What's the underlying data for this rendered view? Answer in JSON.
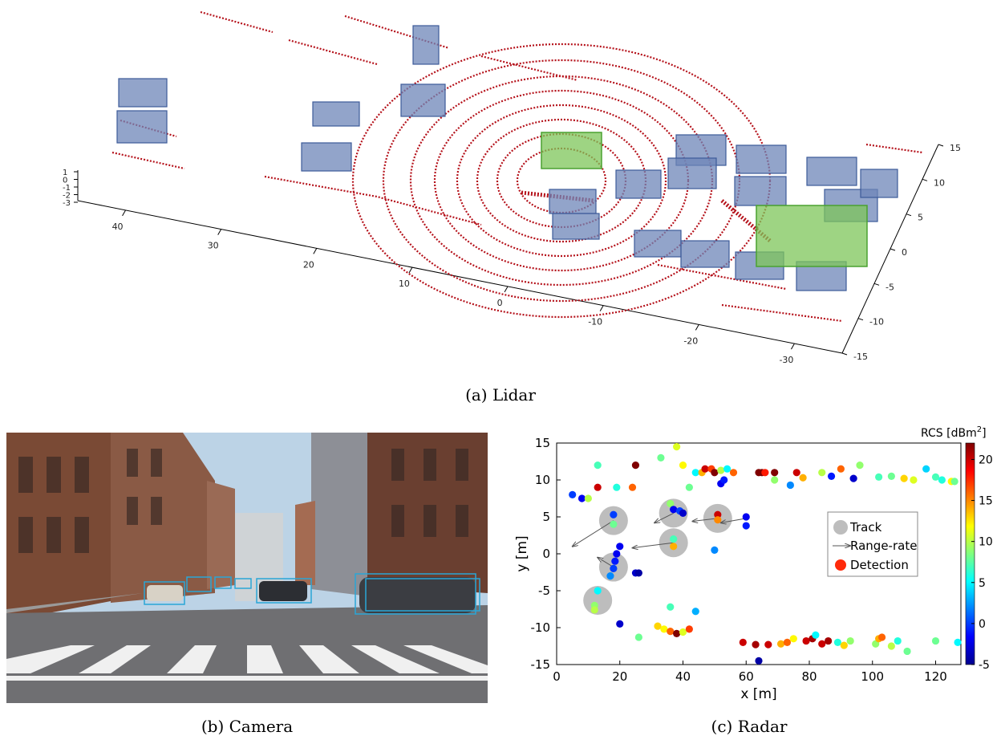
{
  "captions": {
    "lidar": "(a)  Lidar",
    "camera": "(b)  Camera",
    "radar": "(c)  Radar"
  },
  "lidar": {
    "x_ticks": [
      "40",
      "30",
      "20",
      "10",
      "0",
      "-10",
      "-20",
      "-30"
    ],
    "y_ticks": [
      "15",
      "10",
      "5",
      "0",
      "-5",
      "-10",
      "-15"
    ],
    "z_ticks": [
      "1",
      "0",
      "-1",
      "-2",
      "-3"
    ],
    "colors": {
      "points": "#b5121b",
      "box_blue": "#6e86b8",
      "box_green": "#7dc65a"
    }
  },
  "camera": {
    "colors": {
      "sky": "#bcd3e6",
      "road": "#6f6f72",
      "box": "#2aa6d6"
    }
  },
  "radar": {
    "colorbar_label": "RCS [dBm",
    "colorbar_label_sup": "2",
    "colorbar_label_end": "]",
    "colorbar_ticks": [
      "20",
      "15",
      "10",
      "5",
      "0",
      "-5"
    ],
    "legend": {
      "track": "Track",
      "range_rate": "Range-rate",
      "detection": "Detection"
    },
    "chart_data": {
      "type": "scatter",
      "xlabel": "x [m]",
      "ylabel": "y [m]",
      "xlim": [
        0,
        128
      ],
      "ylim": [
        -15,
        15
      ],
      "x_ticks": [
        "0",
        "20",
        "40",
        "60",
        "80",
        "100",
        "120"
      ],
      "y_ticks": [
        "15",
        "10",
        "5",
        "0",
        "-5",
        "-10",
        "-15"
      ],
      "tracks": [
        {
          "x": 18,
          "y": 4.5
        },
        {
          "x": 37,
          "y": 5.5
        },
        {
          "x": 51,
          "y": 4.8
        },
        {
          "x": 37,
          "y": 1.5
        },
        {
          "x": 18,
          "y": -1.8
        },
        {
          "x": 13,
          "y": -6.3
        }
      ],
      "range_rate": [
        {
          "x1": 18,
          "y1": 4.5,
          "x2": 5,
          "y2": 1
        },
        {
          "x1": 37,
          "y1": 5.5,
          "x2": 31,
          "y2": 4.2
        },
        {
          "x1": 51,
          "y1": 4.8,
          "x2": 43,
          "y2": 4.4
        },
        {
          "x1": 37,
          "y1": 1.5,
          "x2": 24,
          "y2": 0.8
        },
        {
          "x1": 18,
          "y1": -1.8,
          "x2": 13,
          "y2": -0.5
        },
        {
          "x1": 60,
          "y1": 4.8,
          "x2": 52,
          "y2": 4.2
        }
      ],
      "detections": [
        {
          "x": 5,
          "y": 8,
          "r": 0
        },
        {
          "x": 8,
          "y": 7.5,
          "r": -2
        },
        {
          "x": 10,
          "y": 7.5,
          "r": 10
        },
        {
          "x": 13,
          "y": 12,
          "r": 7
        },
        {
          "x": 13,
          "y": 9,
          "r": 20
        },
        {
          "x": 19,
          "y": 9,
          "r": 6
        },
        {
          "x": 24,
          "y": 9,
          "r": 16
        },
        {
          "x": 25,
          "y": 12,
          "r": 22
        },
        {
          "x": 33,
          "y": 13,
          "r": 8
        },
        {
          "x": 38,
          "y": 14.5,
          "r": 11
        },
        {
          "x": 40,
          "y": 12,
          "r": 12
        },
        {
          "x": 42,
          "y": 9,
          "r": 8
        },
        {
          "x": 44,
          "y": 11,
          "r": 5
        },
        {
          "x": 46,
          "y": 11,
          "r": 14
        },
        {
          "x": 47,
          "y": 11.5,
          "r": 20
        },
        {
          "x": 49,
          "y": 11.5,
          "r": 17
        },
        {
          "x": 50,
          "y": 11,
          "r": 22
        },
        {
          "x": 52,
          "y": 11.3,
          "r": 10
        },
        {
          "x": 54,
          "y": 11.5,
          "r": 5
        },
        {
          "x": 56,
          "y": 11,
          "r": 16
        },
        {
          "x": 52,
          "y": 9.5,
          "r": -2
        },
        {
          "x": 53,
          "y": 10,
          "r": -1
        },
        {
          "x": 64,
          "y": 11,
          "r": 22
        },
        {
          "x": 65,
          "y": 11,
          "r": 23
        },
        {
          "x": 66,
          "y": 11,
          "r": 18
        },
        {
          "x": 69,
          "y": 11,
          "r": 23
        },
        {
          "x": 69,
          "y": 10,
          "r": 9
        },
        {
          "x": 74,
          "y": 9.3,
          "r": 2
        },
        {
          "x": 76,
          "y": 11,
          "r": 20
        },
        {
          "x": 78,
          "y": 10.3,
          "r": 14
        },
        {
          "x": 84,
          "y": 11,
          "r": 10
        },
        {
          "x": 87,
          "y": 10.5,
          "r": -1
        },
        {
          "x": 90,
          "y": 11.5,
          "r": 16
        },
        {
          "x": 94,
          "y": 10.2,
          "r": -3
        },
        {
          "x": 96,
          "y": 12,
          "r": 9
        },
        {
          "x": 102,
          "y": 10.4,
          "r": 7
        },
        {
          "x": 106,
          "y": 10.5,
          "r": 8
        },
        {
          "x": 110,
          "y": 10.2,
          "r": 13
        },
        {
          "x": 113,
          "y": 10,
          "r": 11
        },
        {
          "x": 117,
          "y": 11.5,
          "r": 4
        },
        {
          "x": 120,
          "y": 10.4,
          "r": 7
        },
        {
          "x": 122,
          "y": 10,
          "r": 6
        },
        {
          "x": 125,
          "y": 9.8,
          "r": 12
        },
        {
          "x": 126,
          "y": 9.8,
          "r": 8
        },
        {
          "x": 18,
          "y": 5.3,
          "r": 0
        },
        {
          "x": 18,
          "y": 4,
          "r": 8
        },
        {
          "x": 36,
          "y": 6.8,
          "r": 9
        },
        {
          "x": 37,
          "y": 6,
          "r": -2
        },
        {
          "x": 39,
          "y": 5.8,
          "r": 0
        },
        {
          "x": 40,
          "y": 5.5,
          "r": -3
        },
        {
          "x": 51,
          "y": 5.3,
          "r": 20
        },
        {
          "x": 51,
          "y": 4.6,
          "r": 15
        },
        {
          "x": 60,
          "y": 5,
          "r": -2
        },
        {
          "x": 60,
          "y": 3.8,
          "r": -1
        },
        {
          "x": 37,
          "y": 2,
          "r": 7
        },
        {
          "x": 37,
          "y": 1,
          "r": 14
        },
        {
          "x": 20,
          "y": 1,
          "r": -2
        },
        {
          "x": 19,
          "y": 0,
          "r": -2
        },
        {
          "x": 18.5,
          "y": -1,
          "r": -1
        },
        {
          "x": 18,
          "y": -2,
          "r": 0
        },
        {
          "x": 17,
          "y": -3,
          "r": 2
        },
        {
          "x": 25,
          "y": -2.6,
          "r": -3
        },
        {
          "x": 26,
          "y": -2.6,
          "r": -4
        },
        {
          "x": 50,
          "y": 0.5,
          "r": 2
        },
        {
          "x": 13,
          "y": -5,
          "r": 5
        },
        {
          "x": 12,
          "y": -7,
          "r": 9
        },
        {
          "x": 12,
          "y": -7.6,
          "r": 10
        },
        {
          "x": 36,
          "y": -7.2,
          "r": 7
        },
        {
          "x": 44,
          "y": -7.8,
          "r": 3
        },
        {
          "x": 20,
          "y": -9.5,
          "r": -3
        },
        {
          "x": 26,
          "y": -11.3,
          "r": 8
        },
        {
          "x": 32,
          "y": -9.8,
          "r": 13
        },
        {
          "x": 34,
          "y": -10.2,
          "r": 12
        },
        {
          "x": 36,
          "y": -10.5,
          "r": 16
        },
        {
          "x": 38,
          "y": -10.8,
          "r": 22
        },
        {
          "x": 40,
          "y": -10.6,
          "r": 11
        },
        {
          "x": 42,
          "y": -10.2,
          "r": 17
        },
        {
          "x": 59,
          "y": -12,
          "r": 20
        },
        {
          "x": 63,
          "y": -12.3,
          "r": 21
        },
        {
          "x": 67,
          "y": -12.3,
          "r": 20
        },
        {
          "x": 71,
          "y": -12.2,
          "r": 14
        },
        {
          "x": 73,
          "y": -12,
          "r": 16
        },
        {
          "x": 75,
          "y": -11.5,
          "r": 12
        },
        {
          "x": 79,
          "y": -11.8,
          "r": 20
        },
        {
          "x": 81,
          "y": -11.5,
          "r": 21
        },
        {
          "x": 82,
          "y": -11,
          "r": 5
        },
        {
          "x": 84,
          "y": -12.2,
          "r": 20
        },
        {
          "x": 86,
          "y": -11.8,
          "r": 21
        },
        {
          "x": 89,
          "y": -12,
          "r": 6
        },
        {
          "x": 91,
          "y": -12.4,
          "r": 13
        },
        {
          "x": 93,
          "y": -11.8,
          "r": 9
        },
        {
          "x": 101,
          "y": -12.2,
          "r": 9
        },
        {
          "x": 102,
          "y": -11.5,
          "r": 14
        },
        {
          "x": 103,
          "y": -11.3,
          "r": 16
        },
        {
          "x": 106,
          "y": -12.5,
          "r": 10
        },
        {
          "x": 108,
          "y": -11.8,
          "r": 6
        },
        {
          "x": 111,
          "y": -13.2,
          "r": 8
        },
        {
          "x": 120,
          "y": -11.8,
          "r": 8
        },
        {
          "x": 127,
          "y": -12,
          "r": 5
        },
        {
          "x": 64,
          "y": -14.5,
          "r": -4
        }
      ]
    }
  }
}
